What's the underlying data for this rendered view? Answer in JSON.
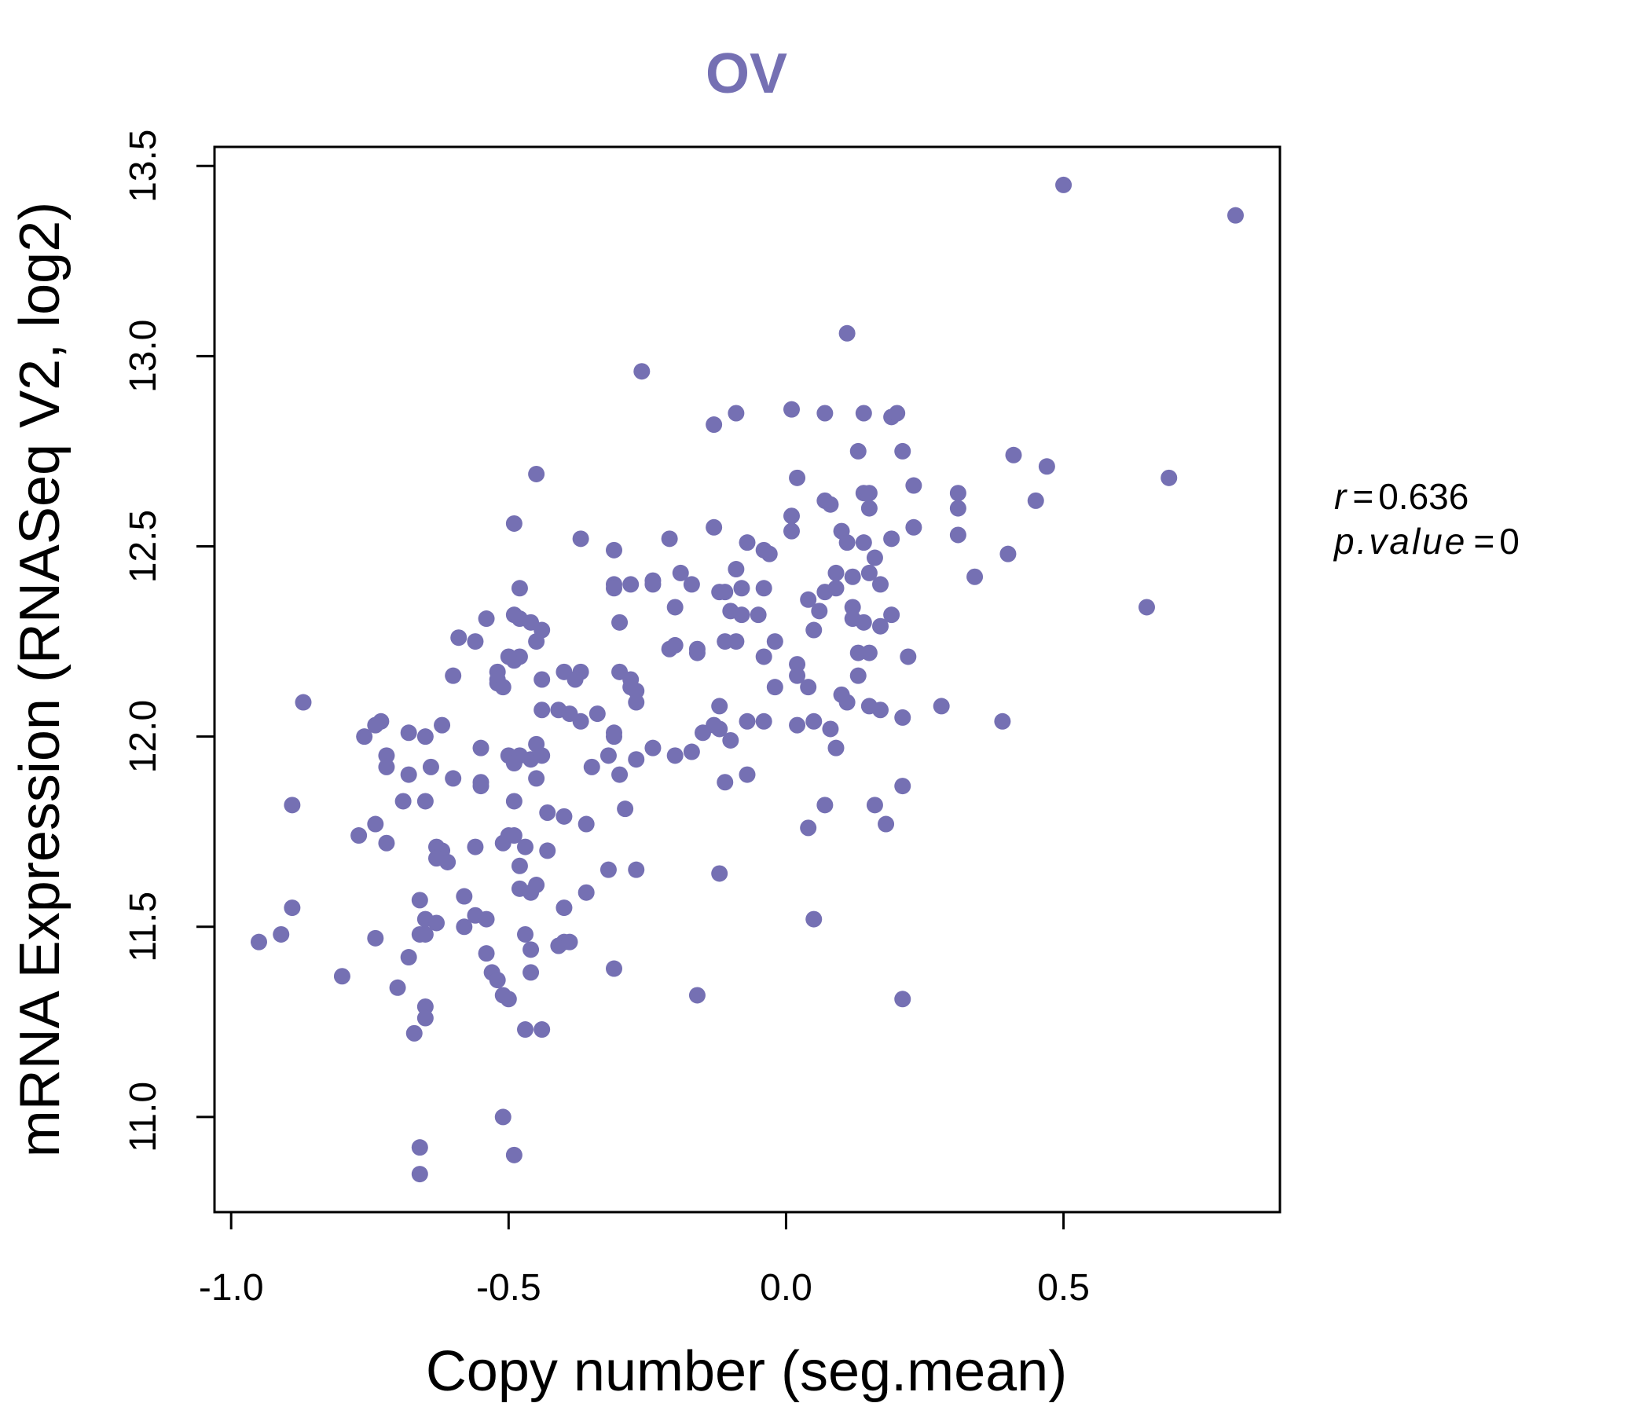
{
  "chart_data": {
    "type": "scatter",
    "title": "OV",
    "xlabel": "Copy number (seg.mean)",
    "ylabel": "mRNA Expression (RNASeq V2, log2)",
    "xlim": [
      -1.03,
      0.89
    ],
    "ylim": [
      10.75,
      13.55
    ],
    "x_ticks": [
      -1.0,
      -0.5,
      0.0,
      0.5
    ],
    "x_tick_labels": [
      "-1.0",
      "-0.5",
      "0.0",
      "0.5"
    ],
    "y_ticks": [
      11.0,
      11.5,
      12.0,
      12.5,
      13.0,
      13.5
    ],
    "y_tick_labels": [
      "11.0",
      "11.5",
      "12.0",
      "12.5",
      "13.0",
      "13.5"
    ],
    "grid": false,
    "point_color": "#7570b3",
    "stats": {
      "r_label": "r",
      "r_value": "0.636",
      "p_label": "p.value",
      "p_value": "0"
    },
    "points": [
      [
        0.5,
        13.45
      ],
      [
        0.81,
        13.37
      ],
      [
        0.11,
        13.06
      ],
      [
        -0.26,
        12.96
      ],
      [
        -0.13,
        12.82
      ],
      [
        -0.09,
        12.85
      ],
      [
        0.01,
        12.86
      ],
      [
        0.07,
        12.85
      ],
      [
        0.14,
        12.85
      ],
      [
        0.19,
        12.84
      ],
      [
        0.2,
        12.85
      ],
      [
        0.13,
        12.75
      ],
      [
        0.21,
        12.75
      ],
      [
        0.41,
        12.74
      ],
      [
        0.47,
        12.71
      ],
      [
        0.69,
        12.68
      ],
      [
        0.02,
        12.68
      ],
      [
        0.23,
        12.66
      ],
      [
        -0.45,
        12.69
      ],
      [
        0.14,
        12.64
      ],
      [
        0.15,
        12.64
      ],
      [
        0.31,
        12.64
      ],
      [
        0.07,
        12.62
      ],
      [
        0.08,
        12.61
      ],
      [
        0.45,
        12.62
      ],
      [
        0.15,
        12.6
      ],
      [
        0.31,
        12.6
      ],
      [
        0.01,
        12.58
      ],
      [
        -0.49,
        12.56
      ],
      [
        -0.13,
        12.55
      ],
      [
        0.01,
        12.54
      ],
      [
        0.1,
        12.54
      ],
      [
        0.23,
        12.55
      ],
      [
        0.31,
        12.53
      ],
      [
        -0.37,
        12.52
      ],
      [
        -0.21,
        12.52
      ],
      [
        -0.07,
        12.51
      ],
      [
        0.11,
        12.51
      ],
      [
        0.14,
        12.51
      ],
      [
        0.19,
        12.52
      ],
      [
        -0.31,
        12.49
      ],
      [
        -0.04,
        12.49
      ],
      [
        -0.03,
        12.48
      ],
      [
        0.16,
        12.47
      ],
      [
        0.4,
        12.48
      ],
      [
        -0.09,
        12.44
      ],
      [
        -0.19,
        12.43
      ],
      [
        0.09,
        12.43
      ],
      [
        0.12,
        12.42
      ],
      [
        0.15,
        12.43
      ],
      [
        0.34,
        12.42
      ],
      [
        -0.31,
        12.4
      ],
      [
        -0.31,
        12.39
      ],
      [
        -0.28,
        12.4
      ],
      [
        -0.24,
        12.4
      ],
      [
        -0.24,
        12.41
      ],
      [
        -0.17,
        12.4
      ],
      [
        -0.12,
        12.38
      ],
      [
        -0.11,
        12.38
      ],
      [
        -0.08,
        12.39
      ],
      [
        -0.04,
        12.39
      ],
      [
        0.07,
        12.38
      ],
      [
        0.09,
        12.39
      ],
      [
        0.17,
        12.4
      ],
      [
        -0.48,
        12.39
      ],
      [
        0.04,
        12.36
      ],
      [
        0.06,
        12.33
      ],
      [
        0.12,
        12.34
      ],
      [
        0.12,
        12.31
      ],
      [
        0.14,
        12.3
      ],
      [
        0.17,
        12.29
      ],
      [
        0.19,
        12.32
      ],
      [
        0.65,
        12.34
      ],
      [
        -0.2,
        12.34
      ],
      [
        -0.1,
        12.33
      ],
      [
        -0.08,
        12.32
      ],
      [
        -0.05,
        12.32
      ],
      [
        -0.49,
        12.32
      ],
      [
        -0.48,
        12.31
      ],
      [
        -0.46,
        12.3
      ],
      [
        -0.44,
        12.28
      ],
      [
        -0.3,
        12.3
      ],
      [
        0.05,
        12.28
      ],
      [
        -0.54,
        12.31
      ],
      [
        -0.59,
        12.26
      ],
      [
        -0.56,
        12.25
      ],
      [
        -0.45,
        12.25
      ],
      [
        -0.11,
        12.25
      ],
      [
        -0.09,
        12.25
      ],
      [
        -0.02,
        12.25
      ],
      [
        -0.21,
        12.23
      ],
      [
        -0.2,
        12.24
      ],
      [
        -0.16,
        12.23
      ],
      [
        -0.16,
        12.22
      ],
      [
        0.13,
        12.22
      ],
      [
        0.15,
        12.22
      ],
      [
        -0.04,
        12.21
      ],
      [
        0.22,
        12.21
      ],
      [
        -0.49,
        12.2
      ],
      [
        -0.48,
        12.21
      ],
      [
        -0.5,
        12.21
      ],
      [
        0.02,
        12.19
      ],
      [
        -0.52,
        12.17
      ],
      [
        -0.4,
        12.17
      ],
      [
        -0.37,
        12.17
      ],
      [
        -0.3,
        12.17
      ],
      [
        -0.28,
        12.15
      ],
      [
        0.02,
        12.16
      ],
      [
        0.13,
        12.16
      ],
      [
        -0.6,
        12.16
      ],
      [
        -0.52,
        12.15
      ],
      [
        -0.52,
        12.14
      ],
      [
        -0.51,
        12.13
      ],
      [
        -0.44,
        12.15
      ],
      [
        -0.38,
        12.15
      ],
      [
        -0.28,
        12.13
      ],
      [
        -0.27,
        12.12
      ],
      [
        -0.02,
        12.13
      ],
      [
        0.04,
        12.13
      ],
      [
        -0.87,
        12.09
      ],
      [
        -0.27,
        12.09
      ],
      [
        -0.12,
        12.08
      ],
      [
        0.1,
        12.11
      ],
      [
        0.11,
        12.09
      ],
      [
        0.15,
        12.08
      ],
      [
        0.17,
        12.07
      ],
      [
        0.28,
        12.08
      ],
      [
        -0.44,
        12.07
      ],
      [
        -0.41,
        12.07
      ],
      [
        -0.39,
        12.06
      ],
      [
        -0.34,
        12.06
      ],
      [
        -0.73,
        12.04
      ],
      [
        -0.74,
        12.03
      ],
      [
        -0.62,
        12.03
      ],
      [
        -0.37,
        12.04
      ],
      [
        -0.13,
        12.03
      ],
      [
        -0.12,
        12.02
      ],
      [
        -0.07,
        12.04
      ],
      [
        -0.04,
        12.04
      ],
      [
        0.02,
        12.03
      ],
      [
        0.05,
        12.04
      ],
      [
        0.08,
        12.02
      ],
      [
        0.21,
        12.05
      ],
      [
        0.39,
        12.04
      ],
      [
        -0.76,
        12.0
      ],
      [
        -0.68,
        12.01
      ],
      [
        -0.65,
        12.0
      ],
      [
        -0.31,
        12.0
      ],
      [
        -0.31,
        12.01
      ],
      [
        -0.15,
        12.01
      ],
      [
        -0.1,
        11.99
      ],
      [
        -0.45,
        11.98
      ],
      [
        0.09,
        11.97
      ],
      [
        -0.55,
        11.97
      ],
      [
        -0.24,
        11.97
      ],
      [
        -0.17,
        11.96
      ],
      [
        -0.72,
        11.95
      ],
      [
        -0.5,
        11.95
      ],
      [
        -0.48,
        11.95
      ],
      [
        -0.46,
        11.94
      ],
      [
        -0.44,
        11.95
      ],
      [
        -0.32,
        11.95
      ],
      [
        -0.2,
        11.95
      ],
      [
        -0.27,
        11.94
      ],
      [
        -0.49,
        11.93
      ],
      [
        -0.72,
        11.92
      ],
      [
        -0.64,
        11.92
      ],
      [
        -0.35,
        11.92
      ],
      [
        -0.3,
        11.9
      ],
      [
        -0.68,
        11.9
      ],
      [
        -0.6,
        11.89
      ],
      [
        -0.55,
        11.88
      ],
      [
        -0.55,
        11.87
      ],
      [
        -0.45,
        11.89
      ],
      [
        -0.07,
        11.9
      ],
      [
        -0.11,
        11.88
      ],
      [
        0.21,
        11.87
      ],
      [
        -0.89,
        11.82
      ],
      [
        -0.69,
        11.83
      ],
      [
        -0.65,
        11.83
      ],
      [
        -0.49,
        11.83
      ],
      [
        -0.43,
        11.8
      ],
      [
        -0.4,
        11.79
      ],
      [
        -0.29,
        11.81
      ],
      [
        0.07,
        11.82
      ],
      [
        0.16,
        11.82
      ],
      [
        -0.74,
        11.77
      ],
      [
        -0.77,
        11.74
      ],
      [
        -0.72,
        11.72
      ],
      [
        -0.63,
        11.71
      ],
      [
        -0.62,
        11.7
      ],
      [
        -0.56,
        11.71
      ],
      [
        -0.51,
        11.72
      ],
      [
        -0.5,
        11.74
      ],
      [
        -0.49,
        11.74
      ],
      [
        -0.47,
        11.71
      ],
      [
        -0.43,
        11.7
      ],
      [
        -0.36,
        11.77
      ],
      [
        0.04,
        11.76
      ],
      [
        0.18,
        11.77
      ],
      [
        -0.63,
        11.68
      ],
      [
        -0.61,
        11.67
      ],
      [
        -0.48,
        11.66
      ],
      [
        -0.32,
        11.65
      ],
      [
        -0.27,
        11.65
      ],
      [
        -0.12,
        11.64
      ],
      [
        -0.48,
        11.6
      ],
      [
        -0.46,
        11.59
      ],
      [
        -0.45,
        11.61
      ],
      [
        -0.36,
        11.59
      ],
      [
        -0.58,
        11.58
      ],
      [
        -0.66,
        11.57
      ],
      [
        -0.4,
        11.55
      ],
      [
        -0.89,
        11.55
      ],
      [
        -0.56,
        11.53
      ],
      [
        -0.54,
        11.52
      ],
      [
        -0.65,
        11.52
      ],
      [
        -0.63,
        11.51
      ],
      [
        -0.58,
        11.5
      ],
      [
        0.05,
        11.52
      ],
      [
        -0.91,
        11.48
      ],
      [
        -0.95,
        11.46
      ],
      [
        -0.74,
        11.47
      ],
      [
        -0.66,
        11.48
      ],
      [
        -0.65,
        11.48
      ],
      [
        -0.47,
        11.48
      ],
      [
        -0.46,
        11.44
      ],
      [
        -0.4,
        11.46
      ],
      [
        -0.41,
        11.45
      ],
      [
        -0.39,
        11.46
      ],
      [
        -0.54,
        11.43
      ],
      [
        -0.68,
        11.42
      ],
      [
        -0.53,
        11.38
      ],
      [
        -0.52,
        11.36
      ],
      [
        -0.46,
        11.38
      ],
      [
        -0.31,
        11.39
      ],
      [
        -0.8,
        11.37
      ],
      [
        -0.7,
        11.34
      ],
      [
        -0.51,
        11.32
      ],
      [
        -0.5,
        11.31
      ],
      [
        -0.16,
        11.32
      ],
      [
        0.21,
        11.31
      ],
      [
        -0.65,
        11.29
      ],
      [
        -0.65,
        11.26
      ],
      [
        -0.67,
        11.22
      ],
      [
        -0.47,
        11.23
      ],
      [
        -0.44,
        11.23
      ],
      [
        -0.51,
        11.0
      ],
      [
        -0.66,
        10.92
      ],
      [
        -0.49,
        10.9
      ],
      [
        -0.66,
        10.85
      ]
    ]
  }
}
